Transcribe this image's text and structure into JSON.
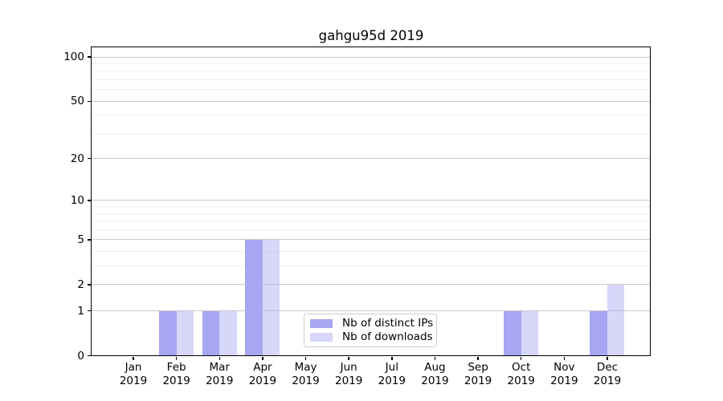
{
  "chart_data": {
    "type": "bar",
    "title": "gahgu95d 2019",
    "categories": [
      "Jan",
      "Feb",
      "Mar",
      "Apr",
      "May",
      "Jun",
      "Jul",
      "Aug",
      "Sep",
      "Oct",
      "Nov",
      "Dec"
    ],
    "category_year": "2019",
    "series": [
      {
        "name": "Nb of distinct IPs",
        "color": "#a6a6f2",
        "fill": "#a6a6f2",
        "values": [
          0,
          1,
          1,
          5,
          0,
          0,
          0,
          0,
          0,
          1,
          0,
          1
        ]
      },
      {
        "name": "Nb of downloads",
        "color": "#d9d9f9",
        "fill": "rgba(166,166,242,0.45)",
        "values": [
          0,
          1,
          1,
          5,
          0,
          0,
          0,
          0,
          0,
          1,
          0,
          2
        ]
      }
    ],
    "xlabel": "",
    "ylabel": "",
    "yscale": "log1p",
    "ylim": [
      0,
      118
    ],
    "yticks": [
      0,
      1,
      2,
      5,
      10,
      20,
      50,
      100
    ],
    "yticks_minor": [
      3,
      4,
      6,
      7,
      8,
      9,
      30,
      40,
      60,
      70,
      80,
      90
    ],
    "grid": true,
    "legend_position": "inside lower center"
  }
}
